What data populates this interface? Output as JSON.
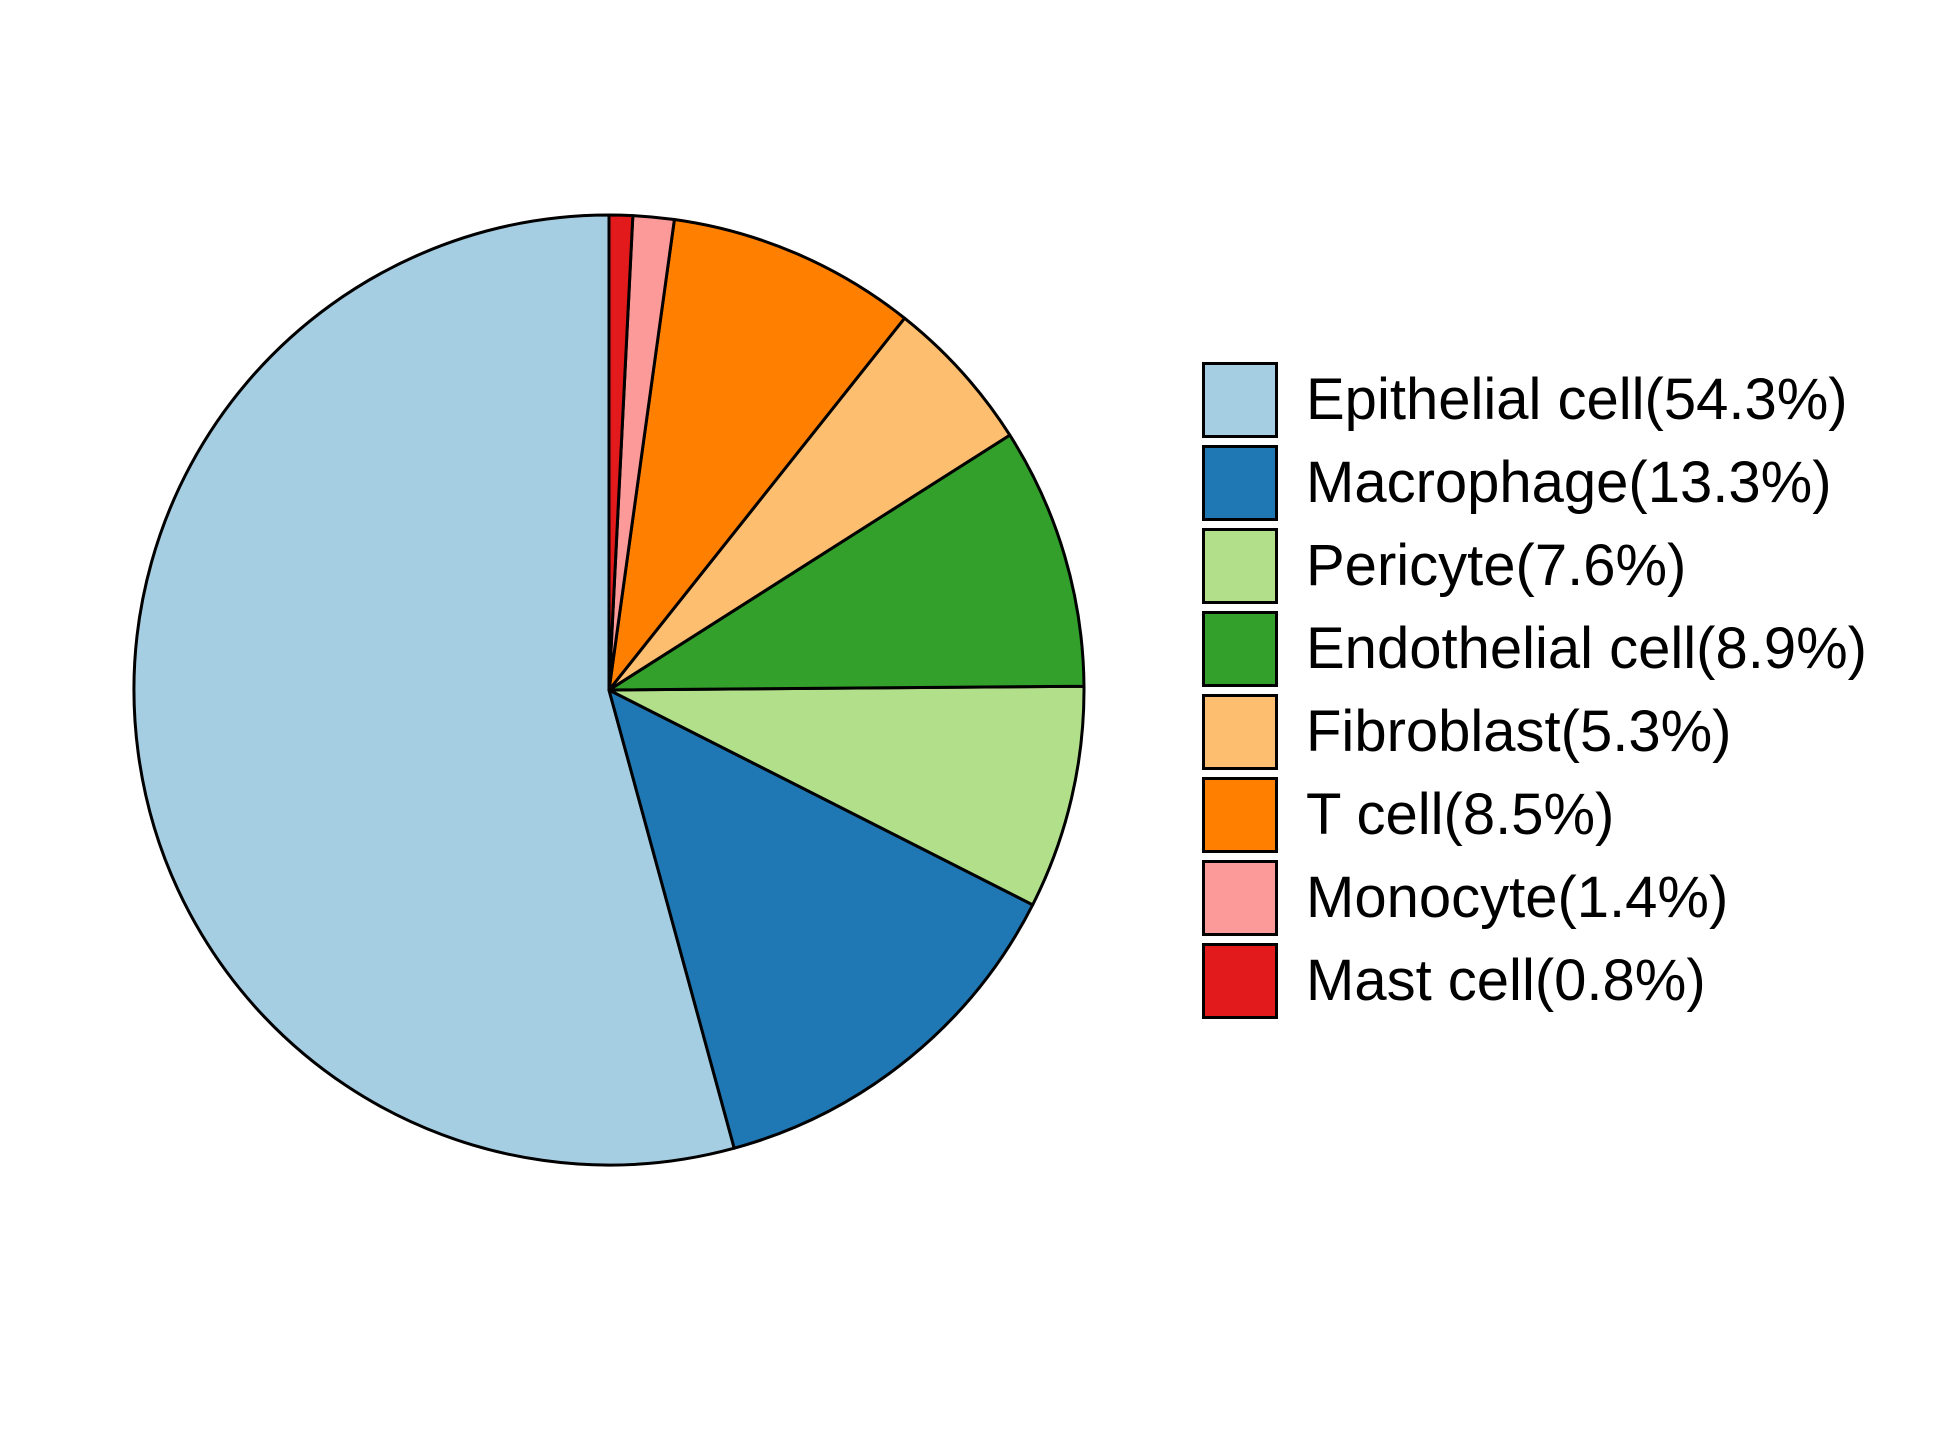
{
  "chart_data": {
    "type": "pie",
    "title": "",
    "start_angle_deg": 90,
    "direction": "counterclockwise",
    "legend_placement": "right",
    "slices": [
      {
        "label": "Epithelial cell(54.3%)",
        "value": 54.3,
        "color": "#A6CEE3"
      },
      {
        "label": "Macrophage(13.3%)",
        "value": 13.3,
        "color": "#1F78B4"
      },
      {
        "label": "Pericyte(7.6%)",
        "value": 7.6,
        "color": "#B2DF8A"
      },
      {
        "label": "Endothelial cell(8.9%)",
        "value": 8.9,
        "color": "#33A02C"
      },
      {
        "label": "Fibroblast(5.3%)",
        "value": 5.3,
        "color": "#FDBF6F"
      },
      {
        "label": "T cell(8.5%)",
        "value": 8.5,
        "color": "#FF7F00"
      },
      {
        "label": "Monocyte(1.4%)",
        "value": 1.4,
        "color": "#FB9A99"
      },
      {
        "label": "Mast cell(0.8%)",
        "value": 0.8,
        "color": "#E31A1C"
      }
    ]
  }
}
